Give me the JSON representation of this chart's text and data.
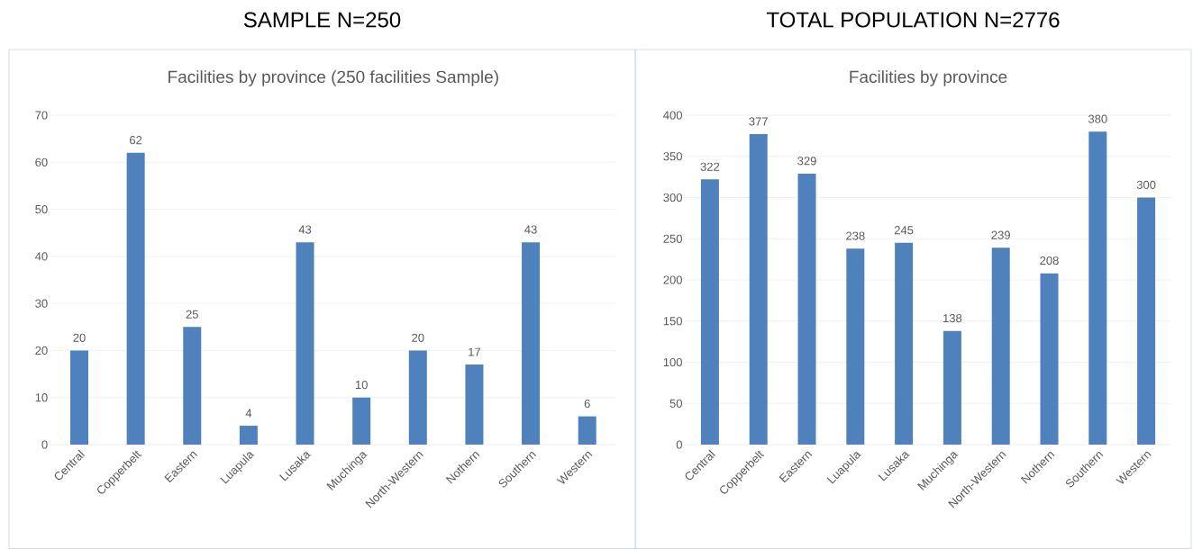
{
  "chart_data": [
    {
      "type": "bar",
      "title": "SAMPLE N=250",
      "subtitle": "Facilities by province (250 facilities Sample)",
      "categories": [
        "Central",
        "Copperbelt",
        "Eastern",
        "Luapula",
        "Lusaka",
        "Muchinga",
        "North-Western",
        "Nothern",
        "Southern",
        "Western"
      ],
      "values": [
        20,
        62,
        25,
        4,
        43,
        10,
        20,
        17,
        43,
        6
      ],
      "color": "#4f81bd",
      "ylim": [
        0,
        70
      ],
      "yticks": [
        0,
        10,
        20,
        30,
        40,
        50,
        60,
        70
      ],
      "grid": "y",
      "data_labels": true
    },
    {
      "type": "bar",
      "title": "TOTAL POPULATION N=2776",
      "subtitle": "Facilities by province",
      "categories": [
        "Central",
        "Copperbelt",
        "Eastern",
        "Luapula",
        "Lusaka",
        "Muchinga",
        "North-Western",
        "Nothern",
        "Southern",
        "Western"
      ],
      "values": [
        322,
        377,
        329,
        238,
        245,
        138,
        239,
        208,
        380,
        300
      ],
      "color": "#4f81bd",
      "ylim": [
        0,
        400
      ],
      "yticks": [
        0,
        50,
        100,
        150,
        200,
        250,
        300,
        350,
        400
      ],
      "grid": "y",
      "data_labels": true
    }
  ]
}
